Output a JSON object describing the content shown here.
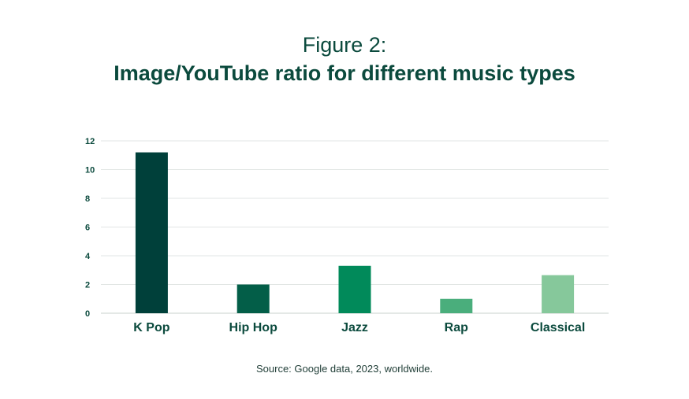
{
  "title": {
    "line1": "Figure 2:",
    "line2": "Image/YouTube ratio for different music types"
  },
  "source": "Source: Google data, 2023, worldwide.",
  "colors": {
    "text": "#0b4a3d",
    "grid": "#e2e6e4",
    "axis": "#c9d1ce",
    "bars": [
      "#00403a",
      "#035e48",
      "#018a5a",
      "#4aae7c",
      "#86c89b"
    ]
  },
  "chart_data": {
    "type": "bar",
    "categories": [
      "K Pop",
      "Hip Hop",
      "Jazz",
      "Rap",
      "Classical"
    ],
    "values": [
      11.2,
      2.0,
      3.3,
      1.0,
      2.65
    ],
    "ylim": [
      0,
      12
    ],
    "yticks": [
      0,
      2,
      4,
      6,
      8,
      10,
      12
    ],
    "grid": true,
    "legend": "none"
  }
}
